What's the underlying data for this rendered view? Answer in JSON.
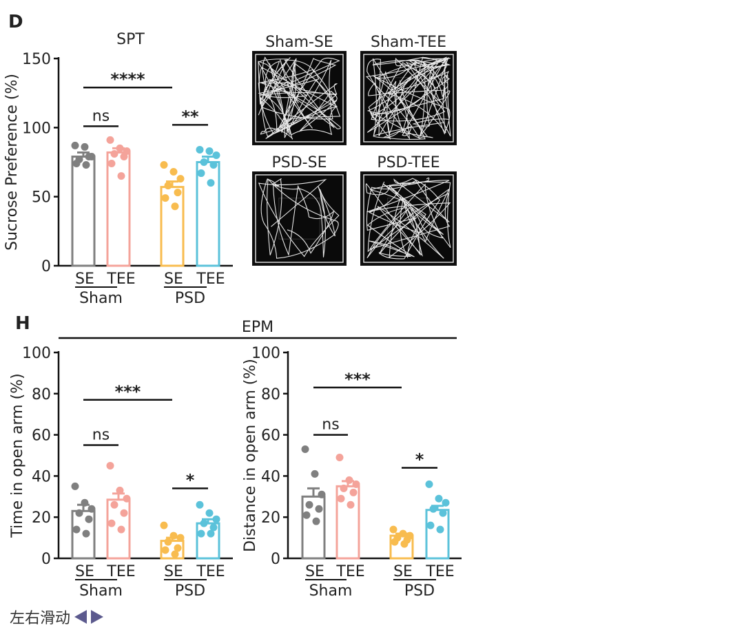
{
  "colors": {
    "SE_sham": "#7f7f7f",
    "TEE_sham": "#f4a39a",
    "SE_psd": "#f8bc4f",
    "TEE_psd": "#5bc2da"
  },
  "panel_labels": {
    "D": "D",
    "H": "H"
  },
  "epm_title": "EPM",
  "chart_data": [
    {
      "id": "spt",
      "type": "bar",
      "title": "SPT",
      "ylabel": "Sucrose Preference (%)",
      "ylim": [
        0,
        150
      ],
      "yticks": [
        0,
        50,
        100,
        150
      ],
      "categories": [
        "SE",
        "TEE",
        "SE",
        "TEE"
      ],
      "group_labels": [
        "Sham",
        "PSD"
      ],
      "values": [
        79,
        82,
        57,
        75
      ],
      "sem": [
        3,
        3,
        4,
        4
      ],
      "points": [
        [
          87,
          86,
          79,
          77,
          79,
          74,
          73
        ],
        [
          91,
          85,
          83,
          81,
          79,
          74,
          65
        ],
        [
          73,
          68,
          63,
          58,
          53,
          49,
          43
        ],
        [
          84,
          83,
          80,
          75,
          73,
          67,
          60
        ]
      ],
      "significance": [
        {
          "from": 0,
          "to": 2,
          "label": "****",
          "y": 129
        },
        {
          "from": 0,
          "to": 1,
          "label": "ns",
          "y": 101
        },
        {
          "from": 2,
          "to": 3,
          "label": "**",
          "y": 102
        }
      ]
    },
    {
      "id": "time",
      "type": "bar",
      "title": "",
      "ylabel": "Time in open arm (%)",
      "ylim": [
        0,
        100
      ],
      "yticks": [
        0,
        20,
        40,
        60,
        80,
        100
      ],
      "categories": [
        "SE",
        "TEE",
        "SE",
        "TEE"
      ],
      "group_labels": [
        "Sham",
        "PSD"
      ],
      "values": [
        23,
        28.5,
        8.5,
        17
      ],
      "sem": [
        3,
        3,
        1.5,
        2
      ],
      "points": [
        [
          35,
          27,
          24,
          22,
          19,
          14,
          12
        ],
        [
          45,
          33,
          29,
          26,
          22,
          17,
          14
        ],
        [
          16,
          11,
          10,
          8,
          5,
          4,
          2
        ],
        [
          26,
          22,
          19,
          17,
          15,
          12,
          12
        ]
      ],
      "significance": [
        {
          "from": 0,
          "to": 2,
          "label": "***",
          "y": 77
        },
        {
          "from": 0,
          "to": 1,
          "label": "ns",
          "y": 55
        },
        {
          "from": 2,
          "to": 3,
          "label": "*",
          "y": 34
        }
      ]
    },
    {
      "id": "distance",
      "type": "bar",
      "title": "",
      "ylabel": "Distance in open arm (%)",
      "ylim": [
        0,
        100
      ],
      "yticks": [
        0,
        20,
        40,
        60,
        80,
        100
      ],
      "categories": [
        "SE",
        "TEE",
        "SE",
        "TEE"
      ],
      "group_labels": [
        "Sham",
        "PSD"
      ],
      "values": [
        30,
        35,
        11,
        23.5
      ],
      "sem": [
        4,
        2.5,
        1,
        2
      ],
      "points": [
        [
          53,
          41,
          31,
          26,
          24,
          21,
          18
        ],
        [
          49,
          38,
          36,
          34,
          32,
          29,
          26
        ],
        [
          14,
          12,
          11,
          10,
          9,
          8,
          7
        ],
        [
          36,
          29,
          27,
          24,
          22,
          16,
          14
        ]
      ],
      "significance": [
        {
          "from": 0,
          "to": 2,
          "label": "***",
          "y": 83
        },
        {
          "from": 0,
          "to": 1,
          "label": "ns",
          "y": 60
        },
        {
          "from": 2,
          "to": 3,
          "label": "*",
          "y": 44
        }
      ]
    }
  ],
  "track_panels": [
    {
      "label": "Sham-SE",
      "paths": 24
    },
    {
      "label": "Sham-TEE",
      "paths": 30
    },
    {
      "label": "PSD-SE",
      "paths": 9
    },
    {
      "label": "PSD-TEE",
      "paths": 18
    }
  ],
  "nav": {
    "label": "左右滑动"
  }
}
